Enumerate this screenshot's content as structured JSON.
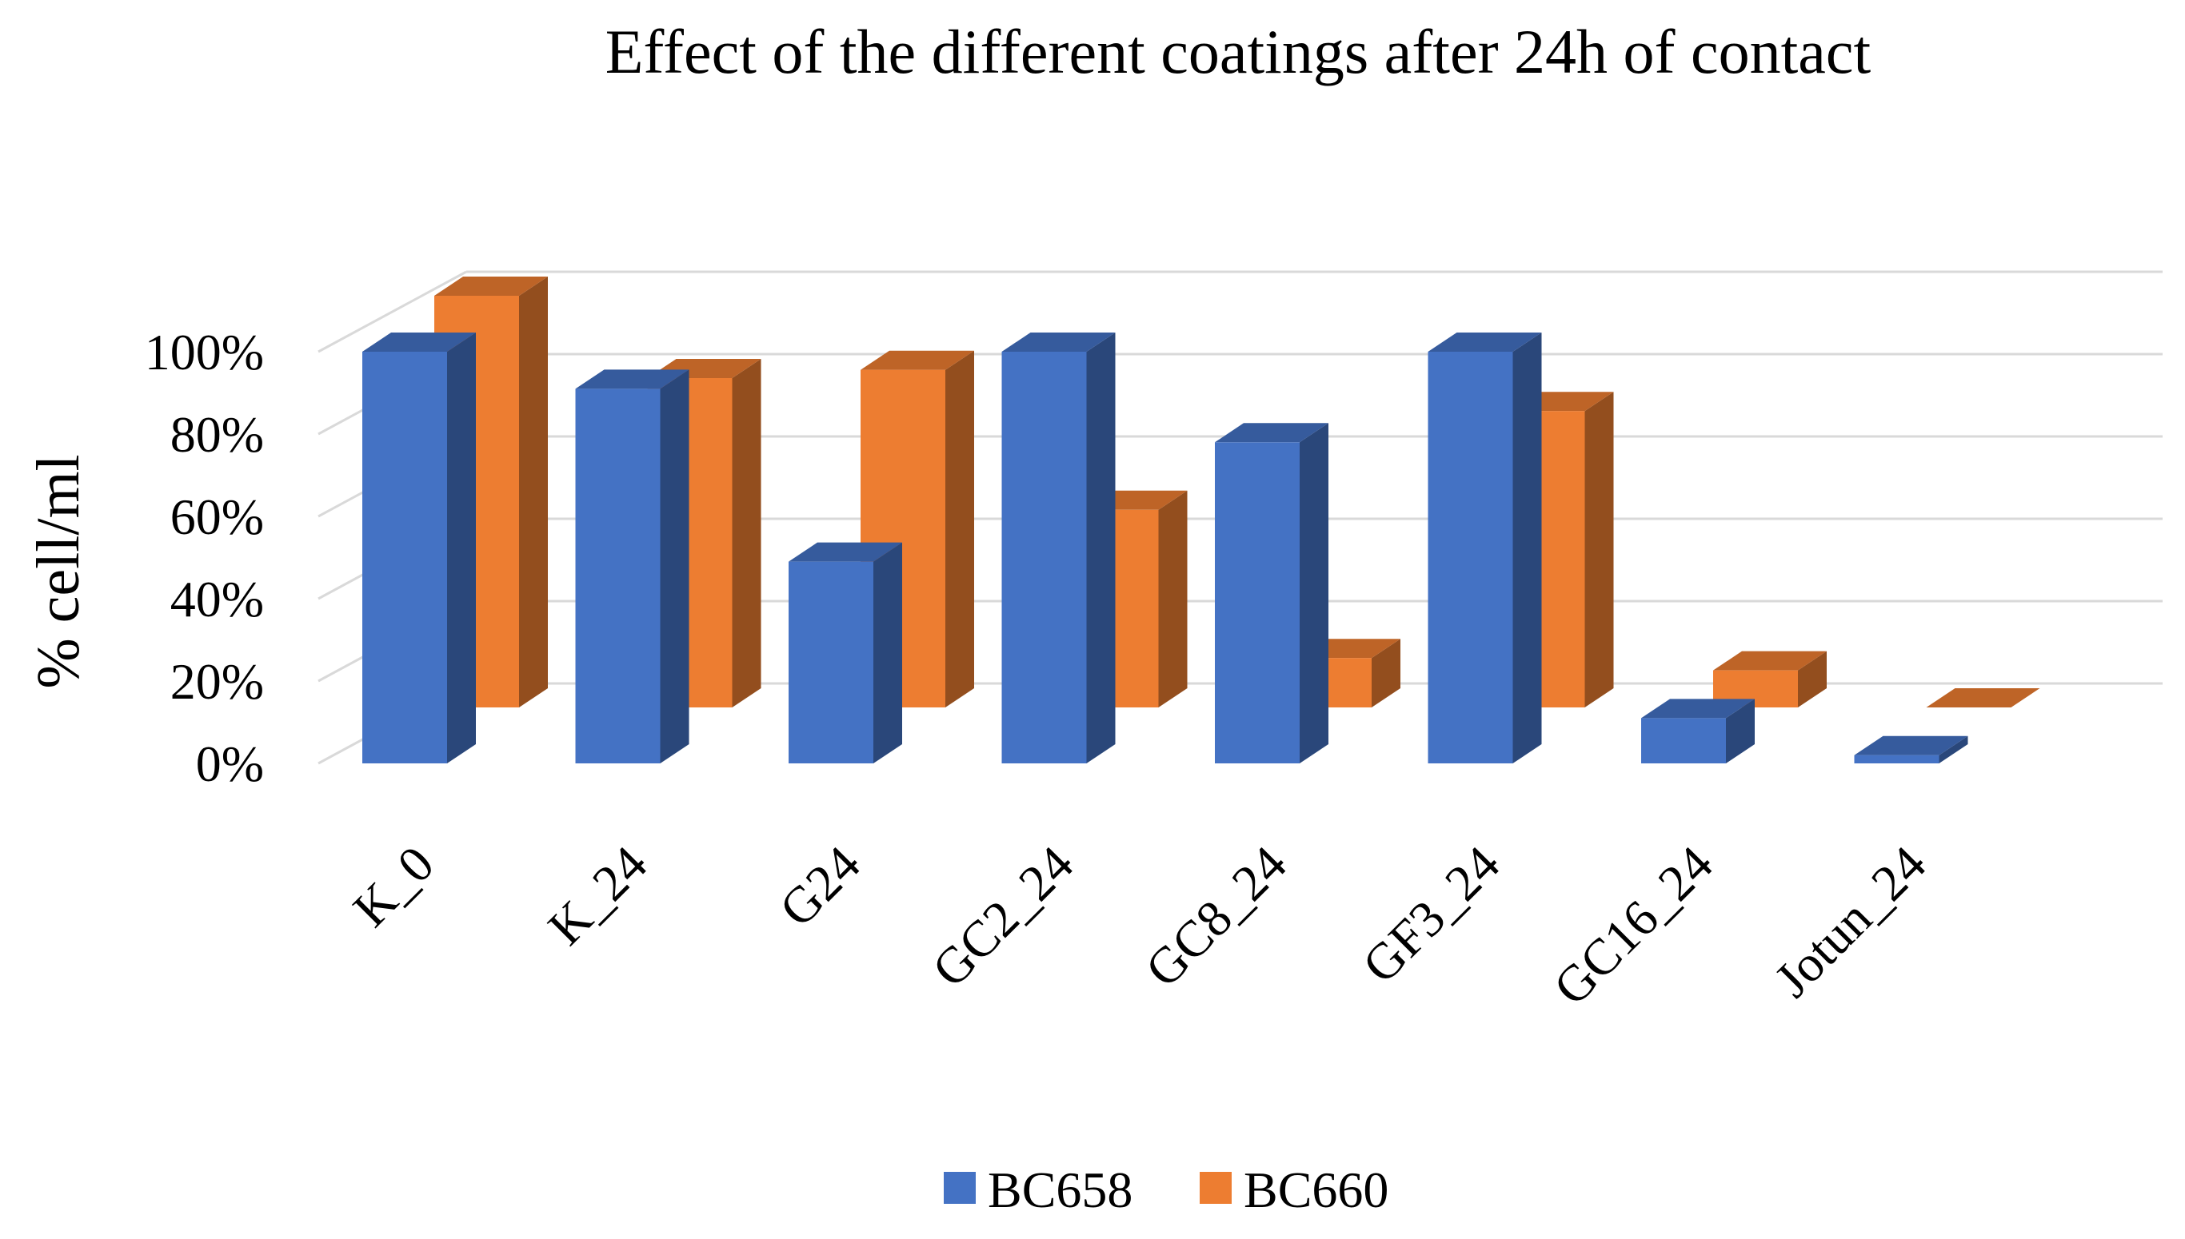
{
  "chart_data": {
    "type": "bar",
    "variant": "3d-clustered-column",
    "title": "Effect of the different coatings after 24h of contact",
    "xlabel": "",
    "ylabel": "% cell/ml",
    "ylim": [
      0,
      100
    ],
    "yticks": [
      0,
      20,
      40,
      60,
      80,
      100
    ],
    "ytick_labels": [
      "0%",
      "20%",
      "40%",
      "60%",
      "80%",
      "100%"
    ],
    "grid": true,
    "legend_position": "bottom-center",
    "categories": [
      "K_0",
      "K_24",
      "G24",
      "GC2_24",
      "GC8_24",
      "GF3_24",
      "GC16_24",
      "Jotun_24"
    ],
    "series": [
      {
        "name": "BC658",
        "color": "#4472C4",
        "values": [
          100,
          91,
          49,
          100,
          78,
          100,
          11,
          2
        ]
      },
      {
        "name": "BC660",
        "color": "#ED7D31",
        "values": [
          100,
          80,
          82,
          48,
          12,
          72,
          9,
          0
        ]
      }
    ]
  }
}
